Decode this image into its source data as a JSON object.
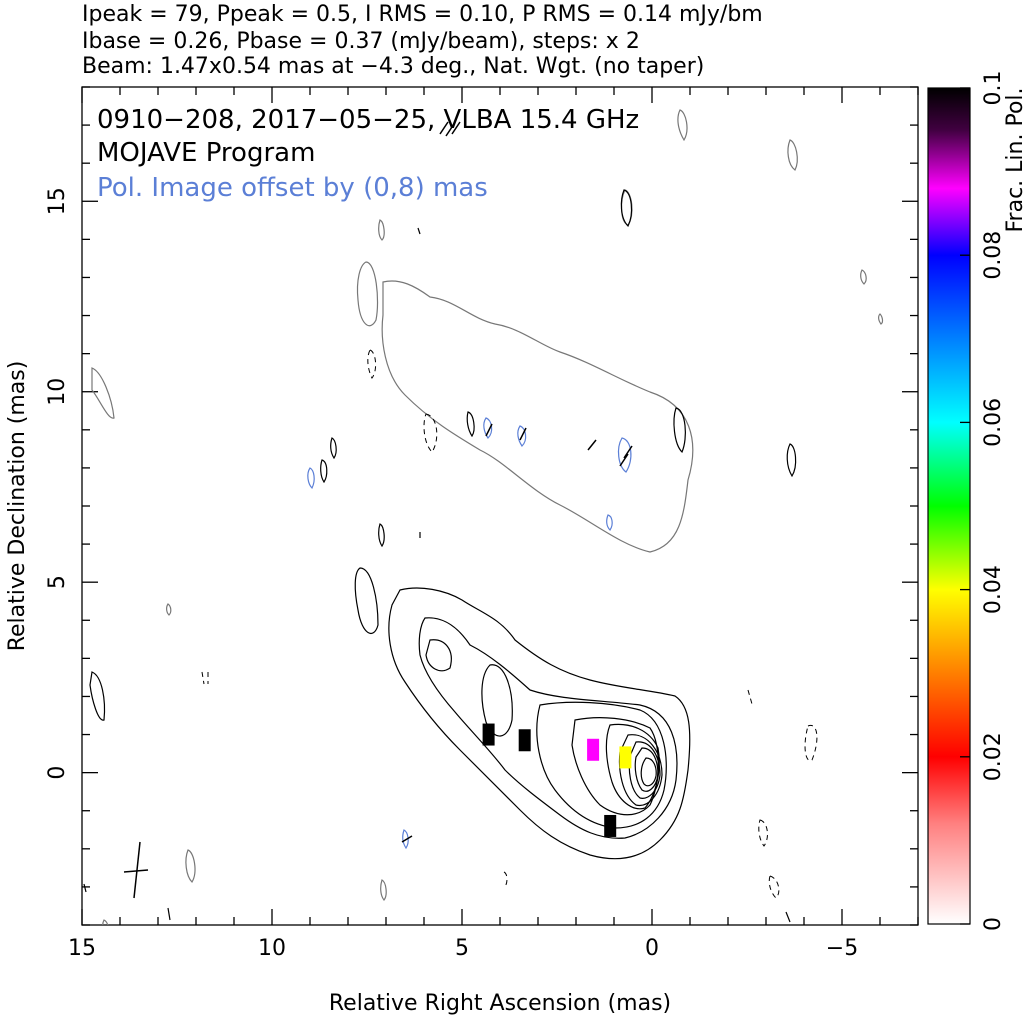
{
  "header": {
    "line1": "Ipeak = 79, Ppeak = 0.5, I RMS = 0.10, P RMS = 0.14 mJy/bm",
    "line2": "Ibase = 0.26, Pbase = 0.37 (mJy/beam), steps: x 2",
    "line3": "Beam: 1.47x0.54 mas at −4.3 deg., Nat. Wgt. (no taper)"
  },
  "annotations": {
    "source": "0910−208, 2017−05−25, VLBA 15.4 GHz",
    "program": "MOJAVE Program",
    "pol_offset": "Pol. Image offset by (0,8) mas",
    "pol_offset_color": "#5b7fd6"
  },
  "chart_data": {
    "type": "contour",
    "xlabel": "Relative Right Ascension (mas)",
    "ylabel": "Relative Declination (mas)",
    "xlim": [
      15,
      -7
    ],
    "ylim": [
      -4,
      18
    ],
    "x_ticks": [
      15,
      10,
      5,
      0,
      -5
    ],
    "x_tick_labels": [
      "15",
      "10",
      "5",
      "0",
      "−5"
    ],
    "y_ticks": [
      0,
      5,
      10,
      15
    ],
    "y_tick_labels": [
      "0",
      "5",
      "10",
      "15"
    ],
    "colorbar": {
      "label": "Frac. Lin. Pol.",
      "range": [
        0,
        0.1
      ],
      "ticks": [
        0,
        0.02,
        0.04,
        0.06,
        0.08,
        0.1
      ],
      "tick_labels": [
        "0",
        "0.02",
        "0.04",
        "0.06",
        "0.08",
        "0.1"
      ]
    },
    "beam": {
      "major_mas": 1.47,
      "minor_mas": 0.54,
      "pa_deg": -4.3
    },
    "stokes_i": {
      "peak_mJy_per_beam": 79,
      "base_mJy_per_beam": 0.26,
      "rms": 0.1,
      "step_factor": 2
    },
    "polarization": {
      "peak_mJy_per_beam": 0.5,
      "base_mJy_per_beam": 0.37,
      "rms": 0.14,
      "offset_mas": [
        0,
        8
      ]
    },
    "core_position_mas": [
      0,
      0
    ],
    "jet_direction": "east / north-east of core",
    "frac_pol_patches": [
      {
        "x": 0.7,
        "y": 0.4,
        "frac_pol": 0.04
      },
      {
        "x": 1.55,
        "y": 0.6,
        "frac_pol": 0.085
      },
      {
        "x": 3.35,
        "y": 0.85,
        "frac_pol": 0.1
      },
      {
        "x": 4.3,
        "y": 1.0,
        "frac_pol": 0.1
      },
      {
        "x": 1.1,
        "y": -1.4,
        "frac_pol": 0.1
      }
    ]
  }
}
